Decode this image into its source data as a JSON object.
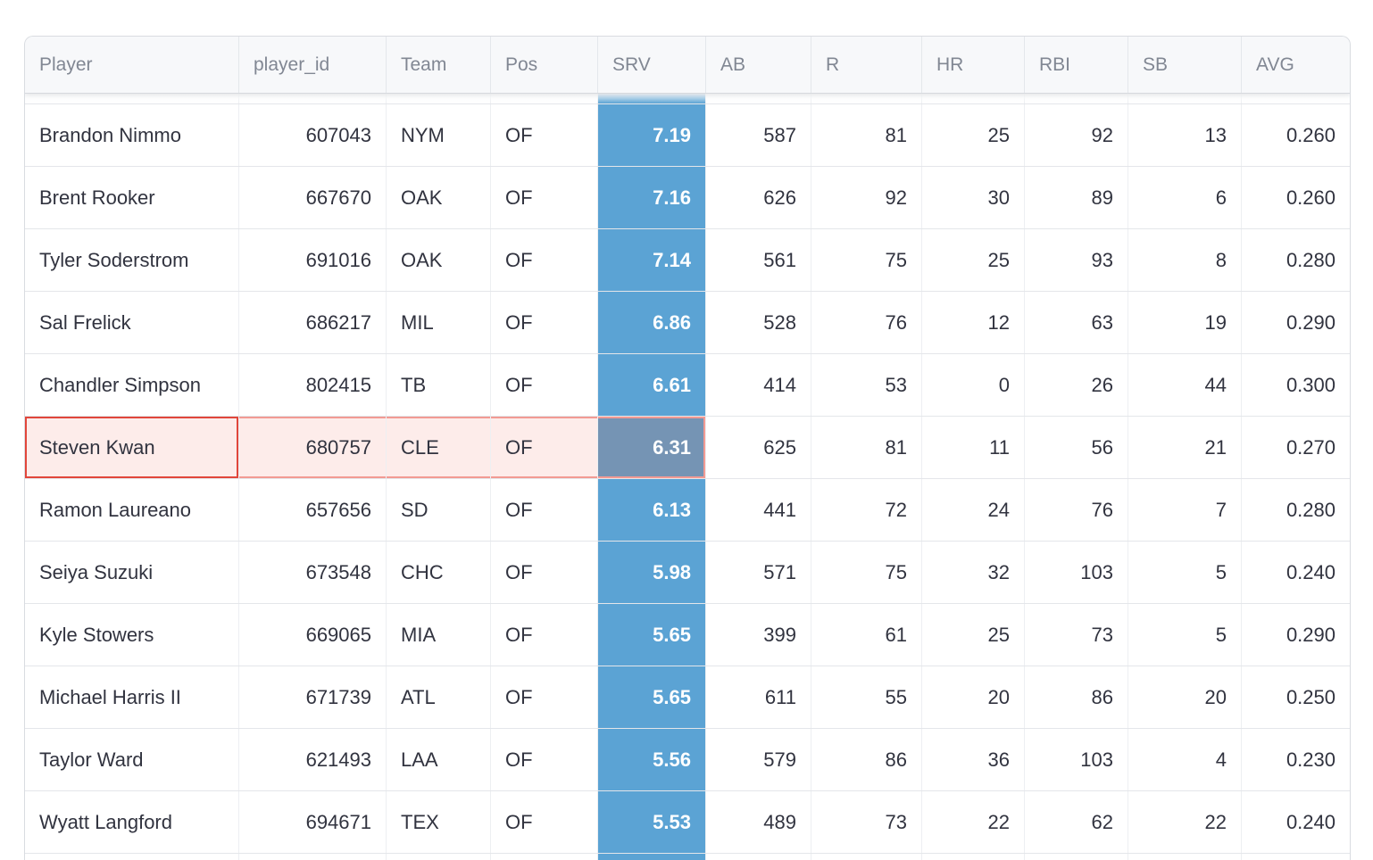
{
  "table": {
    "columns": [
      {
        "key": "player",
        "label": "Player",
        "align": "left"
      },
      {
        "key": "player_id",
        "label": "player_id",
        "align": "right"
      },
      {
        "key": "team",
        "label": "Team",
        "align": "left"
      },
      {
        "key": "pos",
        "label": "Pos",
        "align": "left"
      },
      {
        "key": "srv",
        "label": "SRV",
        "align": "right",
        "emphasized_column": true
      },
      {
        "key": "ab",
        "label": "AB",
        "align": "right"
      },
      {
        "key": "r",
        "label": "R",
        "align": "right"
      },
      {
        "key": "hr",
        "label": "HR",
        "align": "right"
      },
      {
        "key": "rbi",
        "label": "RBI",
        "align": "right"
      },
      {
        "key": "sb",
        "label": "SB",
        "align": "right"
      },
      {
        "key": "avg",
        "label": "AVG",
        "align": "right"
      }
    ],
    "rows": [
      {
        "player": "Brandon Nimmo",
        "player_id": "607043",
        "team": "NYM",
        "pos": "OF",
        "srv": "7.19",
        "ab": "587",
        "r": "81",
        "hr": "25",
        "rbi": "92",
        "sb": "13",
        "avg": "0.260"
      },
      {
        "player": "Brent Rooker",
        "player_id": "667670",
        "team": "OAK",
        "pos": "OF",
        "srv": "7.16",
        "ab": "626",
        "r": "92",
        "hr": "30",
        "rbi": "89",
        "sb": "6",
        "avg": "0.260"
      },
      {
        "player": "Tyler Soderstrom",
        "player_id": "691016",
        "team": "OAK",
        "pos": "OF",
        "srv": "7.14",
        "ab": "561",
        "r": "75",
        "hr": "25",
        "rbi": "93",
        "sb": "8",
        "avg": "0.280"
      },
      {
        "player": "Sal Frelick",
        "player_id": "686217",
        "team": "MIL",
        "pos": "OF",
        "srv": "6.86",
        "ab": "528",
        "r": "76",
        "hr": "12",
        "rbi": "63",
        "sb": "19",
        "avg": "0.290"
      },
      {
        "player": "Chandler Simpson",
        "player_id": "802415",
        "team": "TB",
        "pos": "OF",
        "srv": "6.61",
        "ab": "414",
        "r": "53",
        "hr": "0",
        "rbi": "26",
        "sb": "44",
        "avg": "0.300"
      },
      {
        "player": "Steven Kwan",
        "player_id": "680757",
        "team": "CLE",
        "pos": "OF",
        "srv": "6.31",
        "ab": "625",
        "r": "81",
        "hr": "11",
        "rbi": "56",
        "sb": "21",
        "avg": "0.270"
      },
      {
        "player": "Ramon Laureano",
        "player_id": "657656",
        "team": "SD",
        "pos": "OF",
        "srv": "6.13",
        "ab": "441",
        "r": "72",
        "hr": "24",
        "rbi": "76",
        "sb": "7",
        "avg": "0.280"
      },
      {
        "player": "Seiya Suzuki",
        "player_id": "673548",
        "team": "CHC",
        "pos": "OF",
        "srv": "5.98",
        "ab": "571",
        "r": "75",
        "hr": "32",
        "rbi": "103",
        "sb": "5",
        "avg": "0.240"
      },
      {
        "player": "Kyle Stowers",
        "player_id": "669065",
        "team": "MIA",
        "pos": "OF",
        "srv": "5.65",
        "ab": "399",
        "r": "61",
        "hr": "25",
        "rbi": "73",
        "sb": "5",
        "avg": "0.290"
      },
      {
        "player": "Michael Harris II",
        "player_id": "671739",
        "team": "ATL",
        "pos": "OF",
        "srv": "5.65",
        "ab": "611",
        "r": "55",
        "hr": "20",
        "rbi": "86",
        "sb": "20",
        "avg": "0.250"
      },
      {
        "player": "Taylor Ward",
        "player_id": "621493",
        "team": "LAA",
        "pos": "OF",
        "srv": "5.56",
        "ab": "579",
        "r": "86",
        "hr": "36",
        "rbi": "103",
        "sb": "4",
        "avg": "0.230"
      },
      {
        "player": "Wyatt Langford",
        "player_id": "694671",
        "team": "TEX",
        "pos": "OF",
        "srv": "5.53",
        "ab": "489",
        "r": "73",
        "hr": "22",
        "rbi": "62",
        "sb": "22",
        "avg": "0.240"
      }
    ],
    "highlighted_player": "Steven Kwan",
    "highlight_span_columns": [
      "player",
      "player_id",
      "team",
      "pos",
      "srv"
    ],
    "colors": {
      "srv_column_bg": "#5ba3d4",
      "srv_highlighted_bg": "#7594b4",
      "highlight_row_bg": "#fdecea",
      "highlight_row_border": "#f29a93",
      "highlight_cell_border": "#e1463b",
      "header_bg": "#f7f8fa",
      "header_text": "#818793",
      "cell_text": "#31333f"
    }
  }
}
